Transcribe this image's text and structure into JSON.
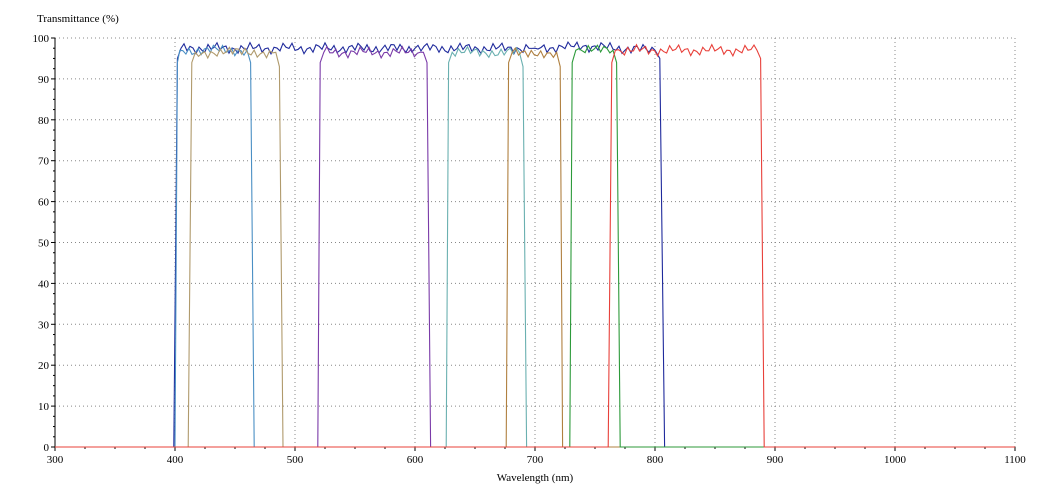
{
  "chart_data": {
    "type": "line",
    "ylabel": "Transmittance (%)",
    "xlabel": "Wavelength (nm)",
    "xlim": [
      300,
      1100
    ],
    "ylim": [
      0,
      100
    ],
    "x_ticks": [
      300,
      400,
      500,
      600,
      700,
      800,
      900,
      1000,
      1100
    ],
    "y_ticks": [
      0,
      10,
      20,
      30,
      40,
      50,
      60,
      70,
      80,
      90,
      100
    ],
    "grid": true,
    "series": [
      {
        "color": "#1f2a9c",
        "x": [
          300,
          399,
          402,
          405,
          600,
          700,
          740,
          800,
          804,
          808,
          1100
        ],
        "y": [
          0,
          0,
          95,
          97.5,
          97.5,
          97.5,
          98,
          97,
          95,
          0,
          0
        ]
      },
      {
        "color": "#4a8fc4",
        "x": [
          300,
          400,
          402,
          404,
          460,
          463,
          466,
          1100
        ],
        "y": [
          0,
          0,
          94,
          97,
          97,
          94,
          0,
          0
        ]
      },
      {
        "color": "#b09a6c",
        "x": [
          300,
          411,
          414,
          417,
          484,
          487,
          490,
          1100
        ],
        "y": [
          0,
          0,
          94,
          96.5,
          96.5,
          93,
          0,
          0
        ]
      },
      {
        "color": "#7a3aa8",
        "x": [
          300,
          519,
          521,
          524,
          607,
          610,
          613,
          1100
        ],
        "y": [
          0,
          0,
          94,
          96.5,
          96.5,
          94,
          0,
          0
        ]
      },
      {
        "color": "#6ab0b0",
        "x": [
          300,
          626,
          628,
          631,
          687,
          690,
          693,
          1100
        ],
        "y": [
          0,
          0,
          94,
          96.5,
          96.5,
          93,
          0,
          0
        ]
      },
      {
        "color": "#b08040",
        "x": [
          300,
          676,
          678,
          681,
          718,
          721,
          723,
          1100
        ],
        "y": [
          0,
          0,
          94,
          96.5,
          96.5,
          93,
          0,
          0
        ]
      },
      {
        "color": "#2c9a3a",
        "x": [
          300,
          729,
          731,
          734,
          765,
          768,
          771,
          1100
        ],
        "y": [
          0,
          0,
          94,
          97,
          97,
          94,
          0,
          0
        ]
      },
      {
        "color": "#e8403a",
        "x": [
          300,
          761,
          764,
          767,
          885,
          888,
          891,
          1100
        ],
        "y": [
          0,
          0,
          94,
          97,
          97,
          95,
          0,
          0
        ]
      }
    ]
  }
}
